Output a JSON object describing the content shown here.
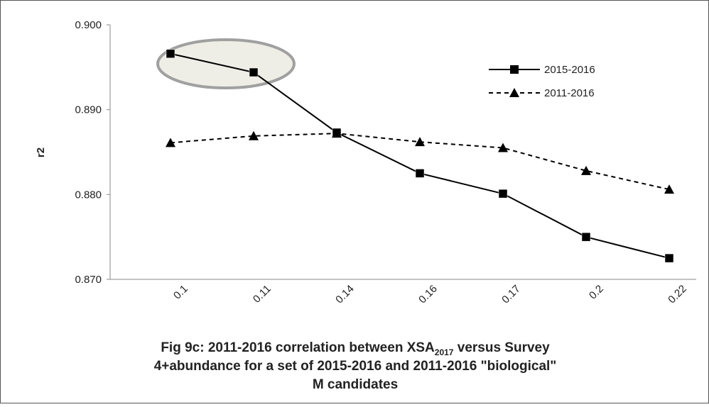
{
  "chart_data": {
    "type": "line",
    "title": {
      "before": "Fig 9c: 2011-2016 correlation between XSA",
      "subscript": "2017",
      "after": " versus Survey",
      "line2": "4+abundance for a set of 2015-2016 and 2011-2016 \"biological\"",
      "line3": "M candidates"
    },
    "y_label": "r2",
    "categories": [
      "0.1",
      "0.11",
      "0.14",
      "0.16",
      "0.17",
      "0.2",
      "0.22"
    ],
    "series": [
      {
        "name": "2015-2016",
        "color": "#000000",
        "dash": "solid",
        "marker": "square",
        "values": [
          0.8966,
          0.8944,
          0.8873,
          0.8825,
          0.8801,
          0.875,
          0.8725
        ]
      },
      {
        "name": "2011-2016",
        "color": "#000000",
        "dash": "dashed",
        "marker": "triangle",
        "values": [
          0.8861,
          0.8869,
          0.8872,
          0.8862,
          0.8855,
          0.8828,
          0.8806
        ]
      }
    ],
    "ylim": [
      0.87,
      0.9
    ],
    "yticks": [
      {
        "value": 0.87,
        "label": "0.870"
      },
      {
        "value": 0.88,
        "label": "0.880"
      },
      {
        "value": 0.89,
        "label": "0.890"
      },
      {
        "value": 0.9,
        "label": "0.900"
      }
    ],
    "grid": false,
    "legend": "upper right"
  }
}
